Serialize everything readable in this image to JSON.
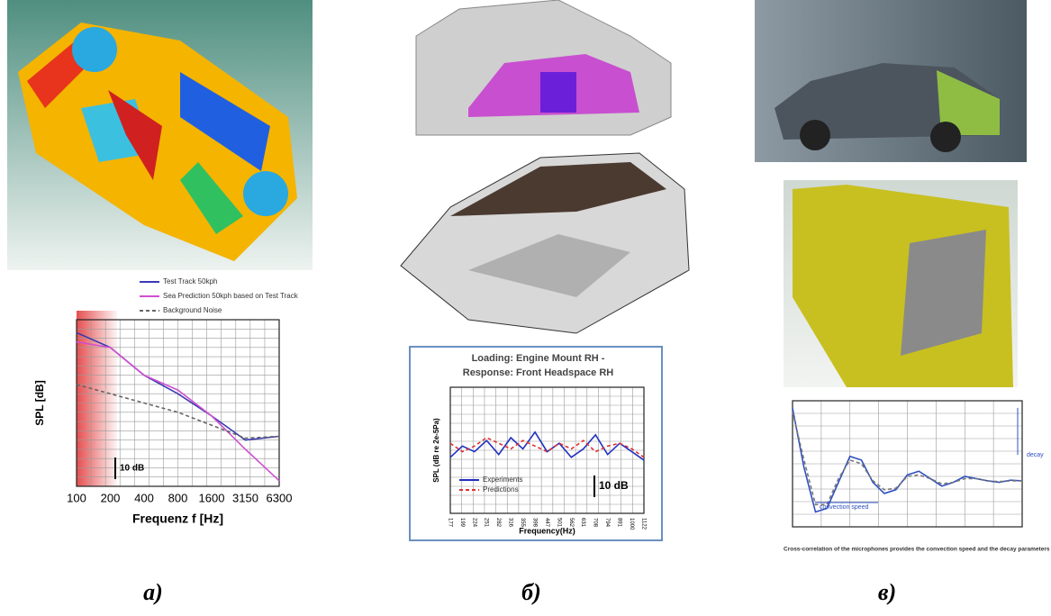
{
  "panels": [
    {
      "label": "a)"
    },
    {
      "label": "б)"
    },
    {
      "label": "в)"
    }
  ],
  "chart_data": [
    {
      "type": "line",
      "ylabel": "SPL [dB]",
      "xlabel": "Frequenz f [Hz]",
      "categories": [
        "100",
        "200",
        "400",
        "800",
        "1600",
        "3150",
        "6300"
      ],
      "ylim": [
        0,
        90
      ],
      "annotation": "10 dB",
      "series": [
        {
          "name": "Test Track 50kph",
          "color": "#3a3ab4",
          "values": [
            83,
            75,
            60,
            50,
            38,
            25,
            27
          ]
        },
        {
          "name": "Sea Prediction 50kph based on Test Track",
          "color": "#d050d0",
          "values": [
            78,
            75,
            60,
            52,
            38,
            20,
            3
          ]
        },
        {
          "name": "Background Noise",
          "color": "#666666",
          "dash": true,
          "values": [
            55,
            50,
            45,
            40,
            33,
            26,
            27
          ]
        }
      ]
    },
    {
      "type": "line",
      "title": [
        "Loading: Engine Mount RH -",
        "Response: Front Headspace RH"
      ],
      "ylabel": "SPL (dB re 2e-5Pa)",
      "xlabel": "Frequency(Hz)",
      "categories": [
        "177",
        "199",
        "224",
        "251",
        "282",
        "316",
        "355",
        "398",
        "447",
        "501",
        "562",
        "631",
        "708",
        "794",
        "891",
        "1000",
        "1122"
      ],
      "ylim": [
        0,
        45
      ],
      "annotation": "10 dB",
      "series": [
        {
          "name": "Experiments",
          "color": "#2030c0",
          "values": [
            20,
            24,
            22,
            26,
            21,
            27,
            23,
            29,
            22,
            25,
            20,
            23,
            28,
            21,
            25,
            22,
            19
          ]
        },
        {
          "name": "Predictions",
          "color": "#e03030",
          "dash": true,
          "values": [
            25,
            22,
            24,
            27,
            25,
            23,
            26,
            24,
            22,
            25,
            23,
            26,
            22,
            24,
            25,
            23,
            20
          ]
        }
      ]
    },
    {
      "type": "line",
      "ylim": [
        -0.6,
        1.1
      ],
      "annotations": [
        "decay",
        "convection speed"
      ],
      "caption": "Cross-correlation of the microphones provides the convection speed and the decay parameters",
      "series": [
        {
          "color": "#3050c0",
          "values": [
            1.0,
            0.2,
            -0.4,
            -0.35,
            0.0,
            0.35,
            0.3,
            0.0,
            -0.15,
            -0.1,
            0.1,
            0.15,
            0.05,
            -0.05,
            0.0,
            0.08,
            0.05,
            0.02,
            0.0,
            0.03,
            0.02
          ]
        },
        {
          "color": "#777777",
          "dash": true,
          "values": [
            0.95,
            0.3,
            -0.3,
            -0.3,
            0.05,
            0.3,
            0.25,
            0.02,
            -0.1,
            -0.08,
            0.08,
            0.1,
            0.05,
            -0.02,
            0.0,
            0.05,
            0.05,
            0.02,
            0.01,
            0.02,
            0.02
          ]
        }
      ]
    }
  ]
}
